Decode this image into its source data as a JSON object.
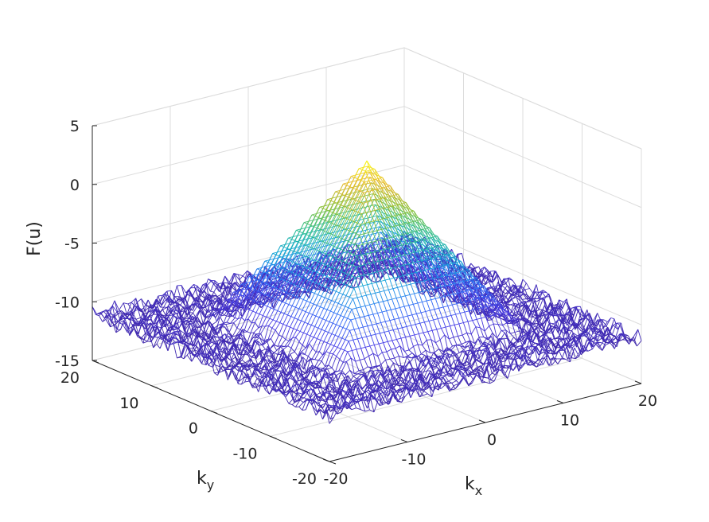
{
  "chart_data": {
    "type": "surface",
    "zlabel": "F(u)",
    "xlabel": "k",
    "xlabel_sub": "x",
    "ylabel": "k",
    "ylabel_sub": "y",
    "xlim": [
      -20,
      20
    ],
    "ylim": [
      -20,
      20
    ],
    "zlim": [
      -15,
      5
    ],
    "x_ticks": [
      -20,
      -10,
      0,
      10,
      20
    ],
    "y_ticks": [
      -20,
      -10,
      0,
      10,
      20
    ],
    "z_ticks": [
      -15,
      -10,
      -5,
      0,
      5
    ],
    "grid": true,
    "colormap": "parula",
    "peak": {
      "kx": 0,
      "ky": 0,
      "value": 3
    },
    "floor_level": -11,
    "surface_shape": "square pyramid peaked at the origin, slope dropping to a noisy floor near -11 for |k| beyond about 12",
    "colormap_colors": [
      "#3e26a8",
      "#4a3de7",
      "#2f6ff7",
      "#14a6d9",
      "#2ebf95",
      "#8cc23a",
      "#e6b92e",
      "#f9fb14"
    ]
  }
}
